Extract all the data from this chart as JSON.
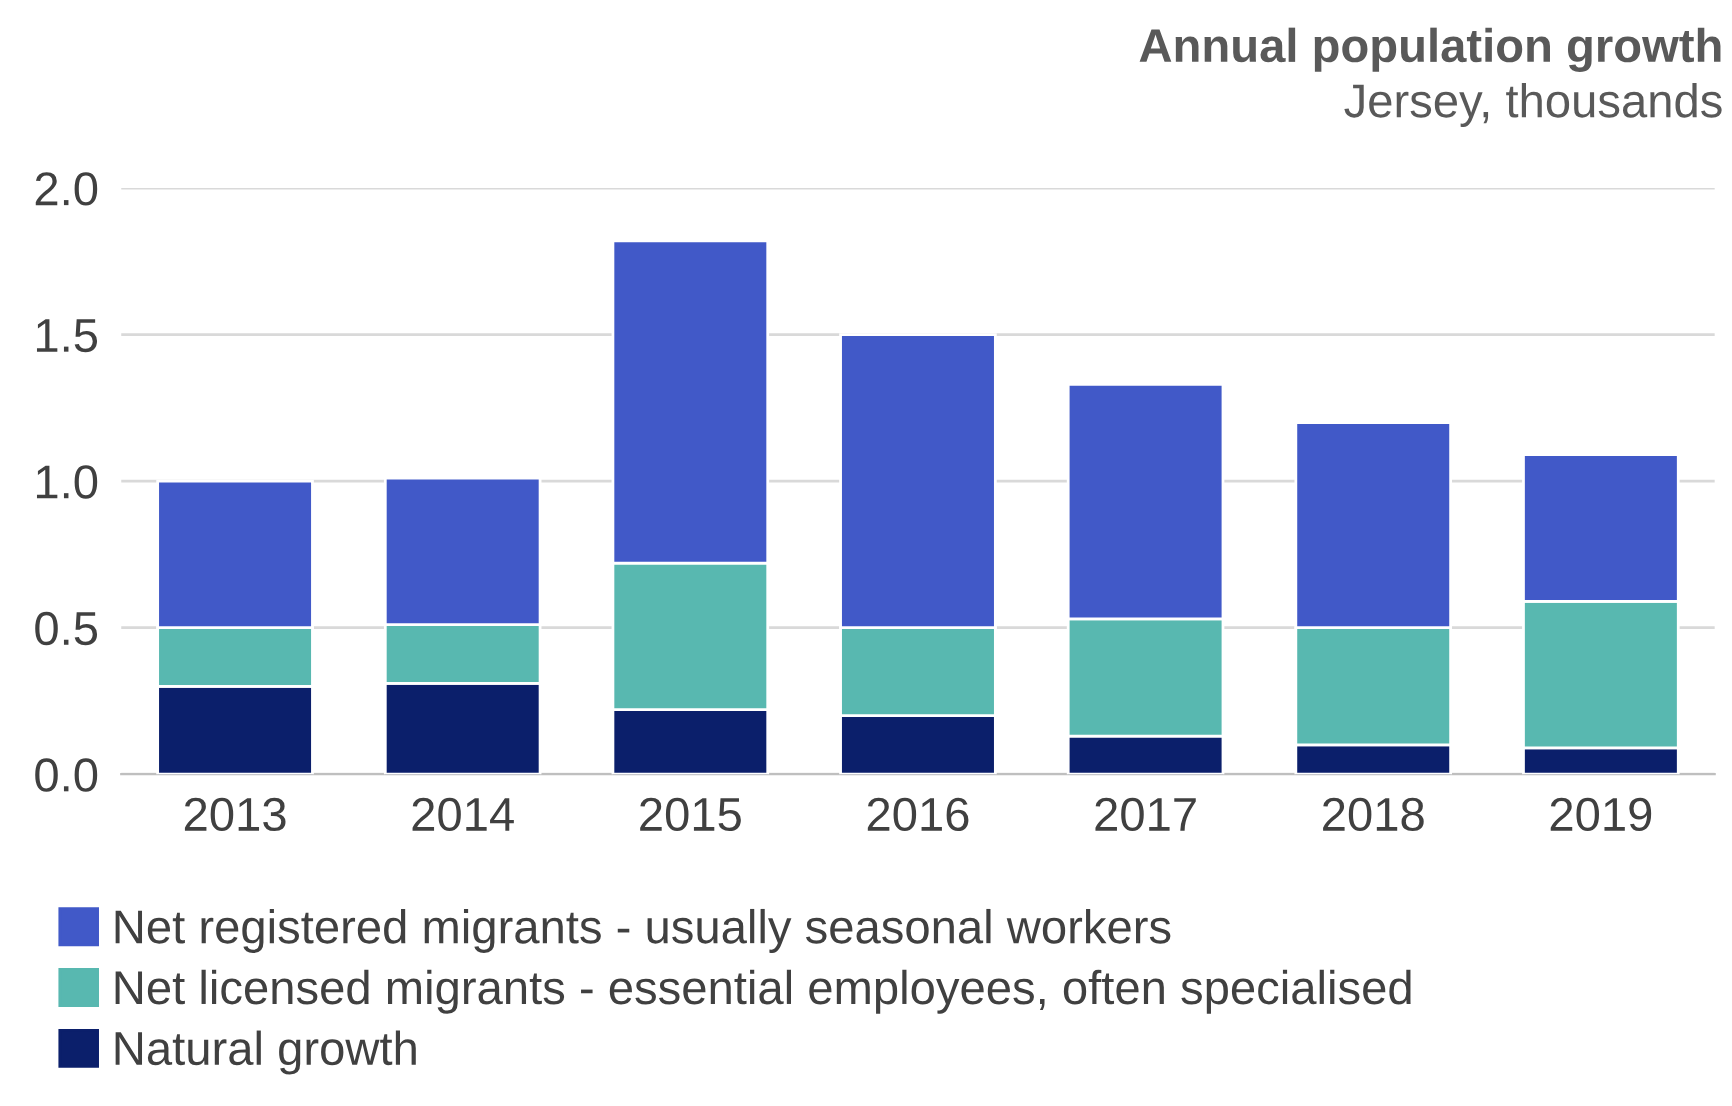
{
  "chart_data": {
    "type": "bar",
    "title": "Annual population growth",
    "subtitle": "Jersey, thousands",
    "categories": [
      "2013",
      "2014",
      "2015",
      "2016",
      "2017",
      "2018",
      "2019"
    ],
    "stacked": true,
    "series": [
      {
        "name": "Natural growth",
        "color": "#0b1f6b",
        "values": [
          0.3,
          0.31,
          0.22,
          0.2,
          0.13,
          0.1,
          0.09
        ]
      },
      {
        "name": "Net licensed migrants - essential employees, often specialised",
        "color": "#58b8b0",
        "values": [
          0.2,
          0.2,
          0.5,
          0.3,
          0.4,
          0.4,
          0.5
        ]
      },
      {
        "name": "Net registered migrants - usually seasonal workers",
        "color": "#4159c8",
        "values": [
          0.5,
          0.5,
          1.1,
          1.0,
          0.8,
          0.7,
          0.5
        ]
      }
    ],
    "ylim": [
      0,
      2.0
    ],
    "yticks": [
      {
        "value": 0,
        "label": "0.0"
      },
      {
        "value": 0.5,
        "label": "0.5"
      },
      {
        "value": 1.0,
        "label": "1.0"
      },
      {
        "value": 1.5,
        "label": "1.5"
      },
      {
        "value": 2.0,
        "label": "2.0"
      }
    ],
    "grid": "y",
    "legend": "bottom"
  }
}
